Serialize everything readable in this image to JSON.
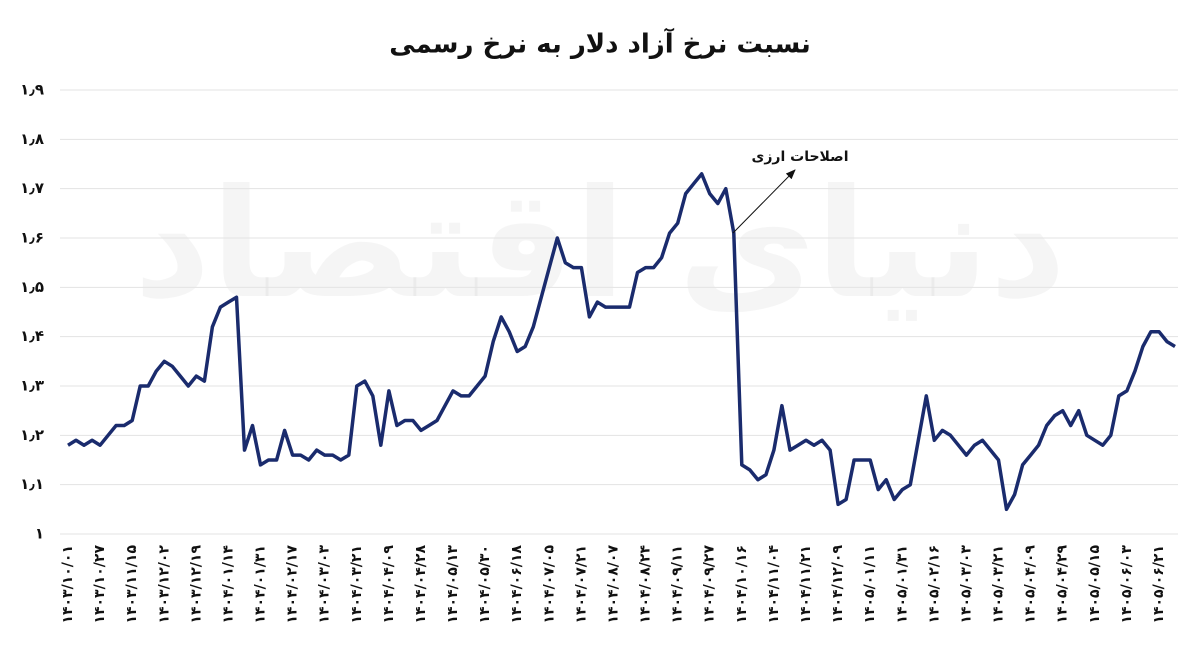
{
  "chart_data": {
    "type": "line",
    "title": "نسبت نرخ آزاد دلار به نرخ رسمی",
    "watermark": "دنیای اقتصاد",
    "annotation": "اصلاحات ارزی",
    "categories": [
      "۱۴۰۳/۱۰/۰۱",
      null,
      null,
      null,
      "۱۴۰۳/۱۰/۲۷",
      null,
      null,
      null,
      "۱۴۰۳/۱۱/۱۵",
      null,
      null,
      null,
      "۱۴۰۳/۱۲/۰۲",
      null,
      null,
      null,
      "۱۴۰۳/۱۲/۱۹",
      null,
      null,
      null,
      "۱۴۰۴/۰۱/۱۴",
      null,
      null,
      null,
      "۱۴۰۴/۰۱/۳۱",
      null,
      null,
      null,
      "۱۴۰۴/۰۲/۱۷",
      null,
      null,
      null,
      "۱۴۰۴/۰۳/۰۳",
      null,
      null,
      null,
      "۱۴۰۴/۰۳/۲۱",
      null,
      null,
      null,
      "۱۴۰۴/۰۴/۰۹",
      null,
      null,
      null,
      "۱۴۰۴/۰۴/۲۸",
      null,
      null,
      null,
      "۱۴۰۴/۰۵/۱۳",
      null,
      null,
      null,
      "۱۴۰۴/۰۵/۳۰",
      null,
      null,
      null,
      "۱۴۰۴/۰۶/۱۸",
      null,
      null,
      null,
      "۱۴۰۴/۰۷/۰۵",
      null,
      null,
      null,
      "۱۴۰۴/۰۷/۲۱",
      null,
      null,
      null,
      "۱۴۰۴/۰۸/۰۷",
      null,
      null,
      null,
      "۱۴۰۴/۰۸/۲۴",
      null,
      null,
      null,
      "۱۴۰۴/۰۹/۱۱",
      null,
      null,
      null,
      "۱۴۰۴/۰۹/۲۷",
      null,
      null,
      null,
      "۱۴۰۴/۱۰/۱۶",
      null,
      null,
      null,
      "۱۴۰۴/۱۱/۰۴",
      null,
      null,
      null,
      "۱۴۰۴/۱۱/۲۱",
      null,
      null,
      null,
      "۱۴۰۴/۱۲/۰۹",
      null,
      null,
      null,
      "۱۴۰۵/۰۱/۱۱",
      null,
      null,
      null,
      "۱۴۰۵/۰۱/۳۱",
      null,
      null,
      null,
      "۱۴۰۵/۰۲/۱۶",
      null,
      null,
      null,
      "۱۴۰۵/۰۳/۰۳",
      null,
      null,
      null,
      "۱۴۰۵/۰۳/۲۱",
      null,
      null,
      null,
      "۱۴۰۵/۰۴/۰۹",
      null,
      null,
      null,
      "۱۴۰۵/۰۴/۲۹",
      null,
      null,
      null,
      "۱۴۰۵/۰۵/۱۵",
      null,
      null,
      null,
      "۱۴۰۵/۰۶/۰۳",
      null,
      null,
      null,
      "۱۴۰۵/۰۶/۲۱",
      null,
      null
    ],
    "series": [
      {
        "color": "#1a2b6d",
        "values": [
          1.18,
          1.19,
          1.18,
          1.19,
          1.18,
          1.2,
          1.22,
          1.22,
          1.23,
          1.3,
          1.3,
          1.33,
          1.35,
          1.34,
          1.32,
          1.3,
          1.32,
          1.31,
          1.42,
          1.46,
          1.47,
          1.48,
          1.17,
          1.22,
          1.14,
          1.15,
          1.15,
          1.21,
          1.16,
          1.16,
          1.15,
          1.17,
          1.16,
          1.16,
          1.15,
          1.16,
          1.3,
          1.31,
          1.28,
          1.18,
          1.29,
          1.22,
          1.23,
          1.23,
          1.21,
          1.22,
          1.23,
          1.26,
          1.29,
          1.28,
          1.28,
          1.3,
          1.32,
          1.39,
          1.44,
          1.41,
          1.37,
          1.38,
          1.42,
          1.48,
          1.54,
          1.6,
          1.55,
          1.54,
          1.54,
          1.44,
          1.47,
          1.46,
          1.46,
          1.46,
          1.46,
          1.53,
          1.54,
          1.54,
          1.56,
          1.61,
          1.63,
          1.69,
          1.71,
          1.73,
          1.69,
          1.67,
          1.7,
          1.61,
          1.14,
          1.13,
          1.11,
          1.12,
          1.17,
          1.26,
          1.17,
          1.18,
          1.19,
          1.18,
          1.19,
          1.17,
          1.06,
          1.07,
          1.15,
          1.15,
          1.15,
          1.09,
          1.11,
          1.07,
          1.09,
          1.1,
          1.19,
          1.28,
          1.19,
          1.21,
          1.2,
          1.18,
          1.16,
          1.18,
          1.19,
          1.17,
          1.15,
          1.05,
          1.08,
          1.14,
          1.16,
          1.18,
          1.22,
          1.24,
          1.25,
          1.22,
          1.25,
          1.2,
          1.19,
          1.18,
          1.2,
          1.28,
          1.29,
          1.33,
          1.38,
          1.41,
          1.41,
          1.39,
          1.38
        ]
      }
    ],
    "ylim": [
      1,
      1.9
    ],
    "yticks": [
      {
        "value": 1,
        "label": "۱"
      },
      {
        "value": 1.1,
        "label": "۱٫۱"
      },
      {
        "value": 1.2,
        "label": "۱٫۲"
      },
      {
        "value": 1.3,
        "label": "۱٫۳"
      },
      {
        "value": 1.4,
        "label": "۱٫۴"
      },
      {
        "value": 1.5,
        "label": "۱٫۵"
      },
      {
        "value": 1.6,
        "label": "۱٫۶"
      },
      {
        "value": 1.7,
        "label": "۱٫۷"
      },
      {
        "value": 1.8,
        "label": "۱٫۸"
      },
      {
        "value": 1.9,
        "label": "۱٫۹"
      }
    ],
    "grid": true
  }
}
